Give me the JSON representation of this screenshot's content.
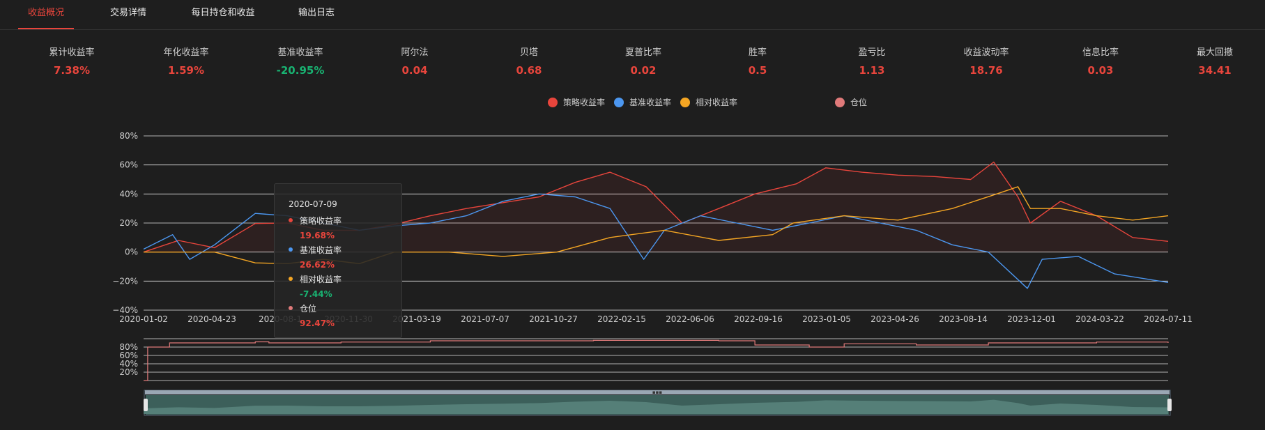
{
  "tabs": [
    {
      "label": "收益概况",
      "active": true
    },
    {
      "label": "交易详情",
      "active": false
    },
    {
      "label": "每日持仓和收益",
      "active": false
    },
    {
      "label": "输出日志",
      "active": false
    }
  ],
  "metrics": [
    {
      "label": "累计收益率",
      "value": "7.38%",
      "color": "#e8453c"
    },
    {
      "label": "年化收益率",
      "value": "1.59%",
      "color": "#e8453c"
    },
    {
      "label": "基准收益率",
      "value": "-20.95%",
      "color": "#19b372"
    },
    {
      "label": "阿尔法",
      "value": "0.04",
      "color": "#e8453c"
    },
    {
      "label": "贝塔",
      "value": "0.68",
      "color": "#e8453c"
    },
    {
      "label": "夏普比率",
      "value": "0.02",
      "color": "#e8453c"
    },
    {
      "label": "胜率",
      "value": "0.5",
      "color": "#e8453c"
    },
    {
      "label": "盈亏比",
      "value": "1.13",
      "color": "#e8453c"
    },
    {
      "label": "收益波动率",
      "value": "18.76",
      "color": "#e8453c"
    },
    {
      "label": "信息比率",
      "value": "0.03",
      "color": "#e8453c"
    },
    {
      "label": "最大回撤",
      "value": "34.41",
      "color": "#e8453c"
    }
  ],
  "legend": [
    {
      "label": "策略收益率",
      "color": "#e8453c"
    },
    {
      "label": "基准收益率",
      "color": "#4c97f0"
    },
    {
      "label": "相对收益率",
      "color": "#f5a623"
    },
    {
      "label": "仓位",
      "color": "#e07a7a"
    }
  ],
  "tooltip": {
    "date": "2020-07-09",
    "rows": [
      {
        "label": "策略收益率",
        "value": "19.68%",
        "dot": "#e8453c",
        "value_color": "#e8453c"
      },
      {
        "label": "基准收益率",
        "value": "26.62%",
        "dot": "#4c97f0",
        "value_color": "#e8453c"
      },
      {
        "label": "相对收益率",
        "value": "-7.44%",
        "dot": "#f5a623",
        "value_color": "#19b372"
      },
      {
        "label": "仓位",
        "value": "92.47%",
        "dot": "#e07a7a",
        "value_color": "#e8453c"
      }
    ]
  },
  "chart_data": [
    {
      "type": "line",
      "ylim": [
        -40,
        80
      ],
      "y_ticks": [
        "80%",
        "60%",
        "40%",
        "20%",
        "0%",
        "−20%",
        "−40%"
      ],
      "x_ticks": [
        "2020-01-02",
        "2020-04-23",
        "2020-08-1",
        "2020-11-30",
        "2021-03-19",
        "2021-07-07",
        "2021-10-27",
        "2022-02-15",
        "2022-06-06",
        "2022-09-16",
        "2023-01-05",
        "2023-04-26",
        "2023-08-14",
        "2023-12-01",
        "2024-03-22",
        "2024-07-11"
      ],
      "series": [
        {
          "name": "策略收益率",
          "color": "#e8453c",
          "x": [
            "2020-01-02",
            "2020-03-01",
            "2020-05-01",
            "2020-07-09",
            "2020-09-01",
            "2020-11-01",
            "2021-01-01",
            "2021-03-01",
            "2021-05-01",
            "2021-07-01",
            "2021-09-01",
            "2021-11-01",
            "2022-01-01",
            "2022-03-01",
            "2022-05-01",
            "2022-07-01",
            "2022-09-01",
            "2022-11-01",
            "2023-01-10",
            "2023-03-01",
            "2023-05-01",
            "2023-07-01",
            "2023-09-01",
            "2023-11-01",
            "2023-12-10",
            "2024-01-20",
            "2024-02-10",
            "2024-04-01",
            "2024-06-01",
            "2024-08-01",
            "2024-09-30"
          ],
          "values": [
            0,
            8,
            3,
            19.68,
            20,
            15,
            15,
            19,
            25,
            30,
            34,
            38,
            48,
            55,
            45,
            20,
            30,
            40,
            47,
            58,
            55,
            53,
            52,
            50,
            62,
            38,
            20,
            35,
            25,
            10,
            7.38
          ]
        },
        {
          "name": "基准收益率",
          "color": "#4c97f0",
          "x": [
            "2020-01-02",
            "2020-02-20",
            "2020-03-20",
            "2020-05-01",
            "2020-07-09",
            "2020-09-01",
            "2020-11-01",
            "2021-01-01",
            "2021-03-01",
            "2021-05-01",
            "2021-07-01",
            "2021-09-01",
            "2021-11-01",
            "2022-01-01",
            "2022-03-01",
            "2022-04-27",
            "2022-06-01",
            "2022-08-01",
            "2022-10-01",
            "2022-12-01",
            "2023-02-01",
            "2023-04-01",
            "2023-06-01",
            "2023-08-01",
            "2023-10-01",
            "2023-12-01",
            "2024-02-05",
            "2024-03-01",
            "2024-05-01",
            "2024-07-01",
            "2024-09-30"
          ],
          "values": [
            2,
            12,
            -5,
            5,
            26.62,
            25,
            20,
            15,
            18,
            20,
            25,
            35,
            40,
            38,
            30,
            -5,
            15,
            25,
            20,
            15,
            20,
            25,
            20,
            15,
            5,
            0,
            -25,
            -5,
            -3,
            -15,
            -20.95
          ]
        },
        {
          "name": "相对收益率",
          "color": "#f5a623",
          "x": [
            "2020-01-02",
            "2020-05-01",
            "2020-07-09",
            "2020-09-01",
            "2020-11-01",
            "2021-01-01",
            "2021-03-01",
            "2021-06-01",
            "2021-09-01",
            "2021-12-01",
            "2022-03-01",
            "2022-06-01",
            "2022-09-01",
            "2022-12-01",
            "2023-01-05",
            "2023-04-01",
            "2023-07-01",
            "2023-10-01",
            "2023-12-15",
            "2024-01-20",
            "2024-02-10",
            "2024-04-01",
            "2024-06-01",
            "2024-08-01",
            "2024-09-30"
          ],
          "values": [
            0,
            0,
            -7.44,
            -8,
            -5,
            -8,
            0,
            0,
            -3,
            0,
            10,
            15,
            8,
            12,
            20,
            25,
            22,
            30,
            40,
            45,
            30,
            30,
            25,
            22,
            25
          ]
        }
      ]
    },
    {
      "type": "area",
      "ylim": [
        0,
        100
      ],
      "y_ticks": [
        "80%",
        "60%",
        "40%",
        "20%"
      ],
      "series": [
        {
          "name": "仓位",
          "color": "#e07a7a",
          "x": [
            "2020-01-02",
            "2020-01-08",
            "2020-01-09",
            "2020-02-15",
            "2020-07-09",
            "2020-08-01",
            "2020-12-01",
            "2021-05-01",
            "2022-02-01",
            "2022-09-01",
            "2022-11-01",
            "2023-02-01",
            "2023-04-01",
            "2023-08-01",
            "2023-12-01",
            "2024-06-01",
            "2024-09-30"
          ],
          "values": [
            0,
            0,
            80,
            90,
            92.47,
            90,
            92,
            95,
            96,
            95,
            85,
            80,
            88,
            85,
            90,
            92,
            90
          ]
        }
      ]
    }
  ]
}
